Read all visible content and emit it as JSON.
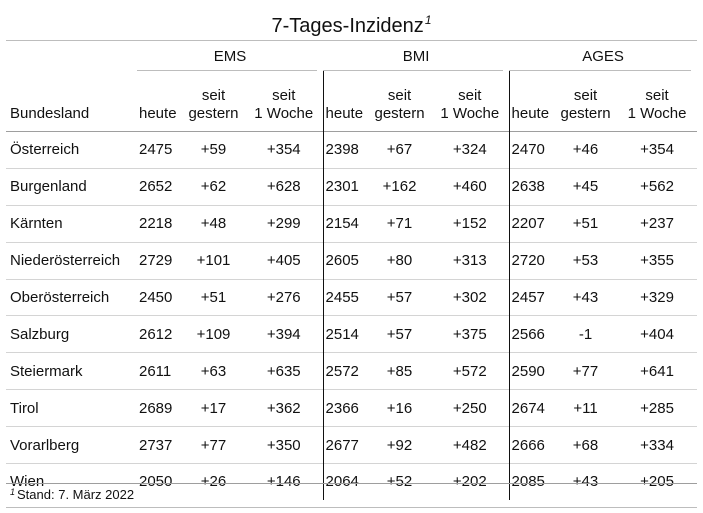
{
  "title": "7-Tages-Inzidenz",
  "title_footnote_mark": "1",
  "groups": [
    "EMS",
    "BMI",
    "AGES"
  ],
  "col_state": "Bundesland",
  "sub_heute": "heute",
  "sub_gestern_1": "seit",
  "sub_gestern_2": "gestern",
  "sub_woche_1": "seit",
  "sub_woche_2": "1 Woche",
  "rows": [
    {
      "name": "Österreich",
      "v": [
        "2475",
        "+59",
        "+354",
        "2398",
        "+67",
        "+324",
        "2470",
        "+46",
        "+354"
      ]
    },
    {
      "name": "Burgenland",
      "v": [
        "2652",
        "+62",
        "+628",
        "2301",
        "+162",
        "+460",
        "2638",
        "+45",
        "+562"
      ]
    },
    {
      "name": "Kärnten",
      "v": [
        "2218",
        "+48",
        "+299",
        "2154",
        "+71",
        "+152",
        "2207",
        "+51",
        "+237"
      ]
    },
    {
      "name": "Niederösterreich",
      "v": [
        "2729",
        "+101",
        "+405",
        "2605",
        "+80",
        "+313",
        "2720",
        "+53",
        "+355"
      ]
    },
    {
      "name": "Oberösterreich",
      "v": [
        "2450",
        "+51",
        "+276",
        "2455",
        "+57",
        "+302",
        "2457",
        "+43",
        "+329"
      ]
    },
    {
      "name": "Salzburg",
      "v": [
        "2612",
        "+109",
        "+394",
        "2514",
        "+57",
        "+375",
        "2566",
        "-1",
        "+404"
      ]
    },
    {
      "name": "Steiermark",
      "v": [
        "2611",
        "+63",
        "+635",
        "2572",
        "+85",
        "+572",
        "2590",
        "+77",
        "+641"
      ]
    },
    {
      "name": "Tirol",
      "v": [
        "2689",
        "+17",
        "+362",
        "2366",
        "+16",
        "+250",
        "2674",
        "+11",
        "+285"
      ]
    },
    {
      "name": "Vorarlberg",
      "v": [
        "2737",
        "+77",
        "+350",
        "2677",
        "+92",
        "+482",
        "2666",
        "+68",
        "+334"
      ]
    },
    {
      "name": "Wien",
      "v": [
        "2050",
        "+26",
        "+146",
        "2064",
        "+52",
        "+202",
        "2085",
        "+43",
        "+205"
      ]
    }
  ],
  "footnote_mark": "1",
  "footnote_text": "Stand: 7. März 2022"
}
